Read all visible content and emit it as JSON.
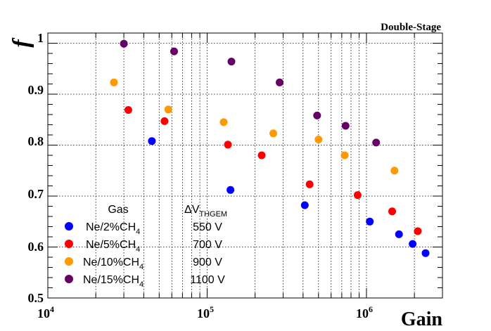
{
  "chart_data": {
    "type": "scatter",
    "title": "Double-Stage",
    "xlabel": "Gain",
    "ylabel": "f",
    "xscale": "log",
    "xlim": [
      10000,
      3000000
    ],
    "ylim": [
      0.5,
      1.02
    ],
    "y_ticks": [
      "0.5",
      "0.6",
      "0.7",
      "0.8",
      "0.9",
      "1"
    ],
    "x_ticks": [
      {
        "base": "10",
        "exp": "4"
      },
      {
        "base": "10",
        "exp": "5"
      },
      {
        "base": "10",
        "exp": "6"
      }
    ],
    "grid": true,
    "legend": {
      "header_gas": "Gas",
      "header_voltage_prefix": "ΔV",
      "header_voltage_sub": "THGEM",
      "placement": "bottom-left"
    },
    "series": [
      {
        "name": "Ne/2%CH4",
        "name_main": "Ne/2%CH",
        "name_sub": "4",
        "voltage": "550 V",
        "color": "#0000ff",
        "x": [
          45000,
          140000,
          410000,
          1050000,
          1600000,
          1950000,
          2350000
        ],
        "y": [
          0.808,
          0.712,
          0.682,
          0.65,
          0.625,
          0.606,
          0.588
        ]
      },
      {
        "name": "Ne/5%CH4",
        "name_main": "Ne/5%CH",
        "name_sub": "4",
        "voltage": "700 V",
        "color": "#ff0000",
        "x": [
          32000,
          54000,
          135000,
          220000,
          440000,
          880000,
          1450000,
          2100000
        ],
        "y": [
          0.869,
          0.847,
          0.801,
          0.78,
          0.723,
          0.702,
          0.67,
          0.631
        ]
      },
      {
        "name": "Ne/10%CH4",
        "name_main": "Ne/10%CH",
        "name_sub": "4",
        "voltage": "900 V",
        "color": "#ff9900",
        "x": [
          26000,
          57000,
          127000,
          260000,
          500000,
          730000,
          1500000
        ],
        "y": [
          0.923,
          0.87,
          0.845,
          0.823,
          0.811,
          0.78,
          0.75
        ]
      },
      {
        "name": "Ne/15%CH4",
        "name_main": "Ne/15%CH",
        "name_sub": "4",
        "voltage": "1100 V",
        "color": "#660066",
        "x": [
          30000,
          62000,
          142000,
          285000,
          490000,
          740000,
          1150000
        ],
        "y": [
          0.999,
          0.984,
          0.964,
          0.923,
          0.858,
          0.838,
          0.805
        ]
      }
    ]
  }
}
